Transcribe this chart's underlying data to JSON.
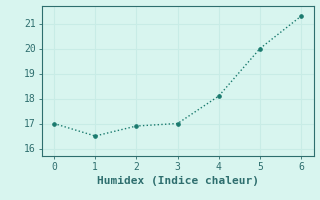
{
  "x": [
    0,
    1,
    2,
    3,
    4,
    5,
    6
  ],
  "y": [
    17.0,
    16.5,
    16.9,
    17.0,
    18.1,
    20.0,
    21.3
  ],
  "xlabel": "Humidex (Indice chaleur)",
  "xlim": [
    -0.3,
    6.3
  ],
  "ylim": [
    15.7,
    21.7
  ],
  "yticks": [
    16,
    17,
    18,
    19,
    20,
    21
  ],
  "xticks": [
    0,
    1,
    2,
    3,
    4,
    5,
    6
  ],
  "line_color": "#1a7a6e",
  "marker_color": "#1a7a6e",
  "bg_color": "#d8f5ef",
  "grid_color": "#c8ece6",
  "tick_label_color": "#2e6e6e",
  "xlabel_color": "#2e6e6e",
  "font_size": 7,
  "xlabel_fontsize": 8
}
